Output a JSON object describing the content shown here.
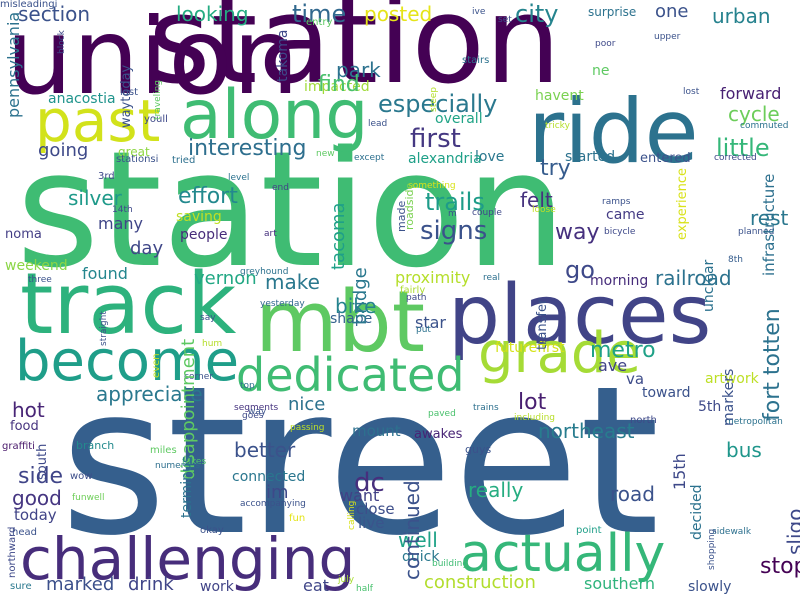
{
  "cloud": {
    "background": "#ffffff",
    "words": [
      {
        "text": "street",
        "color": "#355f8d"
      },
      {
        "text": "station",
        "color": "#3fbc73"
      },
      {
        "text": "station",
        "color": "#440154"
      },
      {
        "text": "union",
        "color": "#440154"
      },
      {
        "text": "ride",
        "color": "#2c728e"
      },
      {
        "text": "places",
        "color": "#414487"
      },
      {
        "text": "mbt",
        "color": "#5ec962"
      },
      {
        "text": "track",
        "color": "#2db27d"
      },
      {
        "text": "along",
        "color": "#3fbc73"
      },
      {
        "text": "past",
        "color": "#d2e21b"
      },
      {
        "text": "become",
        "color": "#1f9e89"
      },
      {
        "text": "grade",
        "color": "#a5db36"
      },
      {
        "text": "challenging",
        "color": "#472d7b"
      },
      {
        "text": "actually",
        "color": "#35b779"
      },
      {
        "text": "dedicated",
        "color": "#3fbc73"
      },
      {
        "text": "section",
        "color": "#3b528b"
      },
      {
        "text": "looking",
        "color": "#25ac82"
      },
      {
        "text": "time",
        "color": "#31688e"
      },
      {
        "text": "posted",
        "color": "#e5e419"
      },
      {
        "text": "city",
        "color": "#25848e"
      },
      {
        "text": "one",
        "color": "#3b528b"
      },
      {
        "text": "urban",
        "color": "#26828e"
      },
      {
        "text": "park",
        "color": "#2c728e"
      },
      {
        "text": "impacted",
        "color": "#a0da39"
      },
      {
        "text": "find",
        "color": "#4ac16d"
      },
      {
        "text": "especially",
        "color": "#2a788e"
      },
      {
        "text": "anacostia",
        "color": "#1f948c"
      },
      {
        "text": "interesting",
        "color": "#2e6f8e"
      },
      {
        "text": "first",
        "color": "#453882"
      },
      {
        "text": "little",
        "color": "#35b779"
      },
      {
        "text": "cycle",
        "color": "#6ccd5a"
      },
      {
        "text": "forward",
        "color": "#482173"
      },
      {
        "text": "going",
        "color": "#3e4989"
      },
      {
        "text": "great",
        "color": "#8fd744"
      },
      {
        "text": "love",
        "color": "#2a778e"
      },
      {
        "text": "started",
        "color": "#2c728e"
      },
      {
        "text": "entered",
        "color": "#3b528b"
      },
      {
        "text": "havent",
        "color": "#7ad151"
      },
      {
        "text": "overall",
        "color": "#20a486"
      },
      {
        "text": "try",
        "color": "#365c8d"
      },
      {
        "text": "alexandria",
        "color": "#1fa088"
      },
      {
        "text": "silver",
        "color": "#1f9a8a"
      },
      {
        "text": "effort",
        "color": "#23898e"
      },
      {
        "text": "felt",
        "color": "#46327e"
      },
      {
        "text": "trails",
        "color": "#1e9c89"
      },
      {
        "text": "saving",
        "color": "#c0df25"
      },
      {
        "text": "many",
        "color": "#404688"
      },
      {
        "text": "people",
        "color": "#472c7a"
      },
      {
        "text": "signs",
        "color": "#3b528b"
      },
      {
        "text": "way",
        "color": "#46307e"
      },
      {
        "text": "came",
        "color": "#443b84"
      },
      {
        "text": "rest",
        "color": "#2a778e"
      },
      {
        "text": "day",
        "color": "#3f4788"
      },
      {
        "text": "noma",
        "color": "#433e85"
      },
      {
        "text": "weekend",
        "color": "#8bd646"
      },
      {
        "text": "found",
        "color": "#24868e"
      },
      {
        "text": "vernon",
        "color": "#22a884"
      },
      {
        "text": "make",
        "color": "#2a788e"
      },
      {
        "text": "go",
        "color": "#3e4989"
      },
      {
        "text": "railroad",
        "color": "#2c728e"
      },
      {
        "text": "bike",
        "color": "#25838e"
      },
      {
        "text": "proximity",
        "color": "#b5de2b"
      },
      {
        "text": "shape",
        "color": "#34618d"
      },
      {
        "text": "morning",
        "color": "#472d7b"
      },
      {
        "text": "star",
        "color": "#3b528b"
      },
      {
        "text": "metro",
        "color": "#1fa187"
      },
      {
        "text": "va",
        "color": "#3e4c8a"
      },
      {
        "text": "ave",
        "color": "#414487"
      },
      {
        "text": "toward",
        "color": "#3b528b"
      },
      {
        "text": "artwork",
        "color": "#bddf26"
      },
      {
        "text": "futurefirst",
        "color": "#d5e21a"
      },
      {
        "text": "appreciate",
        "color": "#2a788e"
      },
      {
        "text": "nice",
        "color": "#2c728e"
      },
      {
        "text": "lot",
        "color": "#481f70"
      },
      {
        "text": "northeast",
        "color": "#287c8e"
      },
      {
        "text": "hot",
        "color": "#482576"
      },
      {
        "text": "mount",
        "color": "#2d708e"
      },
      {
        "text": "awakes",
        "color": "#482475"
      },
      {
        "text": "5th",
        "color": "#3e4a89"
      },
      {
        "text": "better",
        "color": "#3b528b"
      },
      {
        "text": "connected",
        "color": "#2a768e"
      },
      {
        "text": "im",
        "color": "#3e4989"
      },
      {
        "text": "dc",
        "color": "#472f7d"
      },
      {
        "text": "want",
        "color": "#424186"
      },
      {
        "text": "close",
        "color": "#3d4e8a"
      },
      {
        "text": "live",
        "color": "#3a548c"
      },
      {
        "text": "really",
        "color": "#26ad81"
      },
      {
        "text": "road",
        "color": "#3b528b"
      },
      {
        "text": "bus",
        "color": "#1f968b"
      },
      {
        "text": "side",
        "color": "#404588"
      },
      {
        "text": "good",
        "color": "#453581"
      },
      {
        "text": "today",
        "color": "#414487"
      },
      {
        "text": "well",
        "color": "#1fa287"
      },
      {
        "text": "quick",
        "color": "#2a788e"
      },
      {
        "text": "stop",
        "color": "#440154"
      },
      {
        "text": "construction",
        "color": "#b2dd2d"
      },
      {
        "text": "southern",
        "color": "#2eb37c"
      },
      {
        "text": "marked",
        "color": "#3c508b"
      },
      {
        "text": "drink",
        "color": "#404588"
      },
      {
        "text": "work",
        "color": "#414487"
      },
      {
        "text": "eat",
        "color": "#404688"
      },
      {
        "text": "slowly",
        "color": "#3b528b"
      },
      {
        "text": "food",
        "color": "#46337f"
      },
      {
        "text": "miles",
        "color": "#5ec962"
      },
      {
        "text": "branch",
        "color": "#238a8d"
      },
      {
        "text": "graffiti",
        "color": "#48186a"
      },
      {
        "text": "wow",
        "color": "#3d4e8a"
      },
      {
        "text": "funwell",
        "color": "#6ece58"
      },
      {
        "text": "head",
        "color": "#3b528b"
      },
      {
        "text": "sure",
        "color": "#2a788e"
      },
      {
        "text": "half",
        "color": "#48c16e"
      },
      {
        "text": "july",
        "color": "#a8db34"
      },
      {
        "text": "building",
        "color": "#3fbc73"
      },
      {
        "text": "point",
        "color": "#1f9f88"
      },
      {
        "text": "sidewalk",
        "color": "#2d708e"
      },
      {
        "text": "okay",
        "color": "#3b528b"
      },
      {
        "text": "fun",
        "color": "#e3e418"
      },
      {
        "text": "guys",
        "color": "#3b528b"
      },
      {
        "text": "trains",
        "color": "#2d708e"
      },
      {
        "text": "including",
        "color": "#b8de29"
      },
      {
        "text": "north",
        "color": "#3e4989"
      },
      {
        "text": "paved",
        "color": "#4ac16d"
      },
      {
        "text": "metropolitan",
        "color": "#2c728e"
      },
      {
        "text": "accompanying",
        "color": "#3b528b"
      },
      {
        "text": "takes",
        "color": "#4ec36b"
      },
      {
        "text": "numerous",
        "color": "#2e6f8e"
      },
      {
        "text": "passing",
        "color": "#bddf26"
      },
      {
        "text": "segments",
        "color": "#46337f"
      },
      {
        "text": "goes",
        "color": "#3e4989"
      },
      {
        "text": "corner",
        "color": "#3b528b"
      },
      {
        "text": "top",
        "color": "#2d708e"
      },
      {
        "text": "hum",
        "color": "#b5de2b"
      },
      {
        "text": "say",
        "color": "#3b528b"
      },
      {
        "text": "greyhound",
        "color": "#2c728e"
      },
      {
        "text": "yesterday",
        "color": "#31688e"
      },
      {
        "text": "three",
        "color": "#3b528b"
      },
      {
        "text": "fairly",
        "color": "#addc30"
      },
      {
        "text": "path",
        "color": "#3e4989"
      },
      {
        "text": "put",
        "color": "#2c728e"
      },
      {
        "text": "real",
        "color": "#2d708e"
      },
      {
        "text": "8th",
        "color": "#365d8d"
      },
      {
        "text": "planned",
        "color": "#3b528b"
      },
      {
        "text": "bicycle",
        "color": "#3e4989"
      },
      {
        "text": "ramps",
        "color": "#3b528b"
      },
      {
        "text": "couple",
        "color": "#3e4989"
      },
      {
        "text": "art",
        "color": "#46307e"
      },
      {
        "text": "end",
        "color": "#414487"
      },
      {
        "text": "level",
        "color": "#2c728e"
      },
      {
        "text": "3rd",
        "color": "#3e4989"
      },
      {
        "text": "stationsi",
        "color": "#3b528b"
      },
      {
        "text": "tried",
        "color": "#2d708e"
      },
      {
        "text": "youll",
        "color": "#3e4989"
      },
      {
        "text": "last",
        "color": "#3b528b"
      },
      {
        "text": "entry",
        "color": "#5ec962"
      },
      {
        "text": "ive",
        "color": "#3b528b"
      },
      {
        "text": "set",
        "color": "#3e4989"
      },
      {
        "text": "upper",
        "color": "#3b528b"
      },
      {
        "text": "surprise",
        "color": "#2c728e"
      },
      {
        "text": "poor",
        "color": "#3e4989"
      },
      {
        "text": "stairs",
        "color": "#2c728e"
      },
      {
        "text": "lead",
        "color": "#3b528b"
      },
      {
        "text": "new",
        "color": "#5ec962"
      },
      {
        "text": "except",
        "color": "#2d708e"
      },
      {
        "text": "tricky",
        "color": "#b5de2b"
      },
      {
        "text": "lost",
        "color": "#3b528b"
      },
      {
        "text": "commuted",
        "color": "#2c728e"
      },
      {
        "text": "corrected",
        "color": "#3e4989"
      },
      {
        "text": "something",
        "color": "#d8e219"
      },
      {
        "text": "m",
        "color": "#3b528b"
      },
      {
        "text": "loose",
        "color": "#c2df23"
      },
      {
        "text": "14th",
        "color": "#3e4989"
      },
      {
        "text": "ne",
        "color": "#5ec962"
      },
      {
        "text": "way",
        "color": "#3b528b"
      },
      {
        "text": "pennsylvania",
        "color": "#2c728e"
      },
      {
        "text": "waytoday",
        "color": "#3b528b"
      },
      {
        "text": "block",
        "color": "#3e4989"
      },
      {
        "text": "traveling",
        "color": "#5ec962"
      },
      {
        "text": "takoma",
        "color": "#3e4989"
      },
      {
        "text": "steep",
        "color": "#b5de2b"
      },
      {
        "text": "tacoma",
        "color": "#1fa088"
      },
      {
        "text": "made",
        "color": "#3b528b"
      },
      {
        "text": "roadside",
        "color": "#7ad151"
      },
      {
        "text": "bridge",
        "color": "#2a788e"
      },
      {
        "text": "experience",
        "color": "#d8e219"
      },
      {
        "text": "infrastructure",
        "color": "#2d708e"
      },
      {
        "text": "fort totten",
        "color": "#2c728e"
      },
      {
        "text": "unclear",
        "color": "#2c728e"
      },
      {
        "text": "sligo",
        "color": "#3e4989"
      },
      {
        "text": "markers",
        "color": "#3b528b"
      },
      {
        "text": "decided",
        "color": "#2c728e"
      },
      {
        "text": "15th",
        "color": "#3e4989"
      },
      {
        "text": "shopping",
        "color": "#3b528b"
      },
      {
        "text": "disappointment",
        "color": "#5ec962"
      },
      {
        "text": "terminus",
        "color": "#2c728e"
      },
      {
        "text": "south",
        "color": "#3e4989"
      },
      {
        "text": "continued",
        "color": "#3b528b"
      },
      {
        "text": "transfer",
        "color": "#3b528b"
      },
      {
        "text": "even",
        "color": "#c2df23"
      },
      {
        "text": "straight",
        "color": "#3b528b"
      },
      {
        "text": "calling",
        "color": "#d8e219"
      },
      {
        "text": "northward",
        "color": "#3e4989"
      },
      {
        "text": "misleadingi",
        "color": "#3b528b"
      }
    ]
  }
}
